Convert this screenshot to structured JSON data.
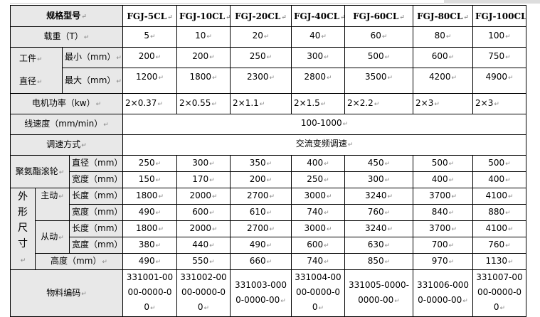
{
  "table": {
    "header_label": "规格型号",
    "models": [
      "FGJ-5CL",
      "FGJ-10CL",
      "FGJ-20CL",
      "FGJ-40CL",
      "FGJ-60CL",
      "FGJ-80CL",
      "FGJ-100CL"
    ],
    "load": {
      "label": "载重（T）",
      "values": [
        "5",
        "10",
        "20",
        "40",
        "60",
        "80",
        "100"
      ]
    },
    "workpiece": {
      "label_top": "工件",
      "label_bottom": "直径",
      "min": {
        "label": "最小（mm）",
        "values": [
          "200",
          "200",
          "250",
          "300",
          "500",
          "600",
          "750"
        ]
      },
      "max": {
        "label": "最大（mm）",
        "values": [
          "1200",
          "1800",
          "2300",
          "2800",
          "3500",
          "4200",
          "4900"
        ]
      }
    },
    "motor": {
      "label": "电机功率（kw）",
      "values": [
        "2×0.37",
        "2×0.55",
        "2×1.1",
        "2×1.5",
        "2×2.2",
        "2×3",
        "2×3"
      ]
    },
    "speed": {
      "label": "线速度（mm/min）",
      "value": "100-1000"
    },
    "speed_mode": {
      "label": "调速方式",
      "value": "交流变频调速"
    },
    "roller": {
      "label": "聚氨酯滚轮",
      "diameter": {
        "label": "直径（mm）",
        "values": [
          "250",
          "300",
          "350",
          "400",
          "450",
          "500",
          "500"
        ]
      },
      "width": {
        "label": "宽度（mm）",
        "values": [
          "150",
          "170",
          "200",
          "250",
          "300",
          "400",
          "400"
        ]
      }
    },
    "dimensions": {
      "label": "外形尺寸",
      "driving": {
        "label": "主动",
        "length": {
          "label": "长度（mm）",
          "values": [
            "1800",
            "2000",
            "2700",
            "3000",
            "3240",
            "3700",
            "4100"
          ]
        },
        "width": {
          "label": "宽度（mm）",
          "values": [
            "490",
            "600",
            "610",
            "740",
            "760",
            "840",
            "880"
          ]
        }
      },
      "driven": {
        "label": "从动",
        "length": {
          "label": "长度（mm）",
          "values": [
            "1800",
            "2000",
            "2700",
            "3000",
            "3240",
            "3700",
            "4100"
          ]
        },
        "width": {
          "label": "宽度（mm）",
          "values": [
            "380",
            "440",
            "490",
            "600",
            "630",
            "700",
            "760"
          ]
        }
      },
      "height": {
        "label": "高度（mm）",
        "values": [
          "490",
          "550",
          "660",
          "740",
          "850",
          "970",
          "1130"
        ]
      }
    },
    "material_code": {
      "label": "物料编码",
      "values": [
        "331001-0000-0000-00",
        "331002-0000-0000-00",
        "331003-0000-0000-00",
        "331004-0000-0000-00",
        "331005-0000-0000-00",
        "331006-0000-0000-00",
        "331007-0000-0000-00"
      ]
    }
  }
}
